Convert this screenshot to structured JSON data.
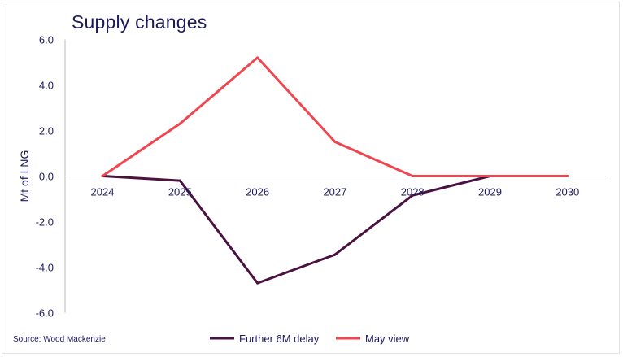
{
  "chart_data": {
    "type": "line",
    "title": "Supply changes",
    "ylabel": "Mt of LNG",
    "xlabel": "",
    "categories": [
      "2024",
      "2025",
      "2026",
      "2027",
      "2028",
      "2029",
      "2030"
    ],
    "ylim": [
      -6.0,
      6.0
    ],
    "yticks": [
      "6.0",
      "4.0",
      "2.0",
      "0.0",
      "-2.0",
      "-4.0",
      "-6.0"
    ],
    "grid": false,
    "legend_position": "bottom",
    "series": [
      {
        "name": "Further 6M delay",
        "color": "#4a1240",
        "values": [
          0,
          -0.2,
          -4.7,
          -3.45,
          -0.85,
          0,
          0
        ]
      },
      {
        "name": "May view",
        "color": "#f0464f",
        "values": [
          0,
          2.3,
          5.2,
          1.5,
          0,
          0,
          0
        ]
      }
    ],
    "source": "Source: Wood Mackenzie"
  }
}
